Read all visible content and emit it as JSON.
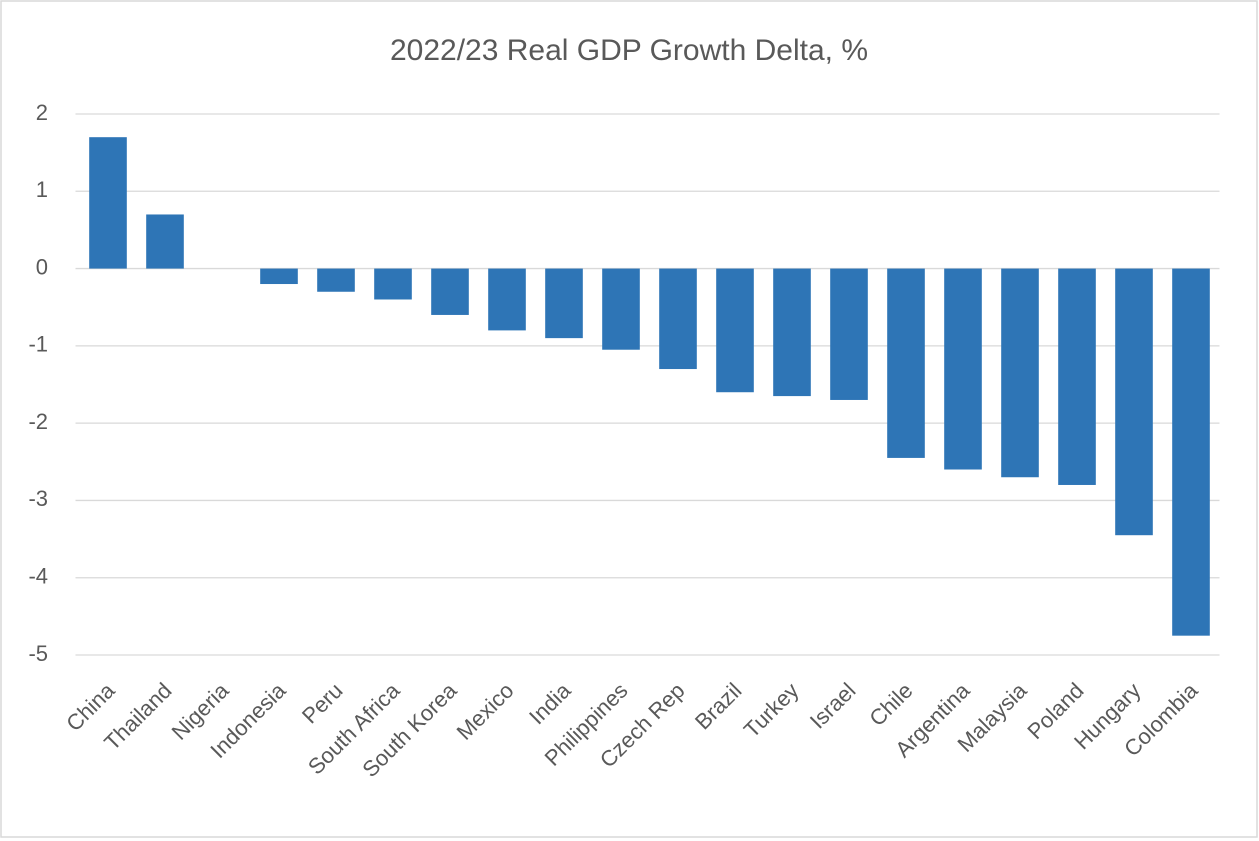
{
  "chart_data": {
    "type": "bar",
    "title": "2022/23 Real GDP Growth Delta, %",
    "categories": [
      "China",
      "Thailand",
      "Nigeria",
      "Indonesia",
      "Peru",
      "South Africa",
      "South Korea",
      "Mexico",
      "India",
      "Philippines",
      "Czech Rep",
      "Brazil",
      "Turkey",
      "Israel",
      "Chile",
      "Argentina",
      "Malaysia",
      "Poland",
      "Hungary",
      "Colombia"
    ],
    "values": [
      1.7,
      0.7,
      0,
      -0.2,
      -0.3,
      -0.4,
      -0.6,
      -0.8,
      -0.9,
      -1.05,
      -1.3,
      -1.6,
      -1.65,
      -1.7,
      -2.45,
      -2.6,
      -2.7,
      -2.8,
      -3.45,
      -4.75
    ],
    "color": "#2e75b6",
    "ylim": [
      -5,
      2
    ],
    "yticks": [
      -5,
      -4,
      -3,
      -2,
      -1,
      0,
      1,
      2
    ],
    "grid": true
  }
}
